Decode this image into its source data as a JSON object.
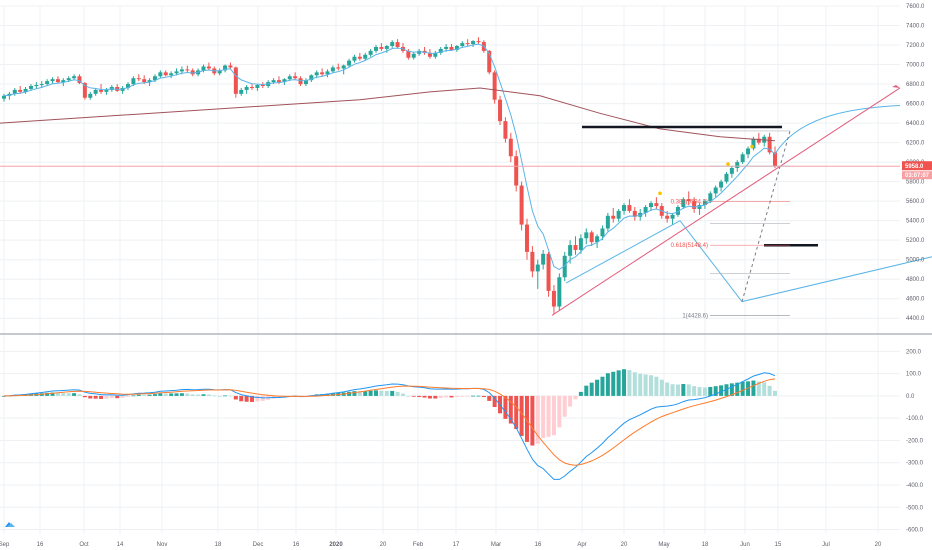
{
  "chart_data": [
    {
      "type": "candlestick",
      "title": "",
      "ylim": [
        4300,
        7600
      ],
      "y_ticks": [
        "7600.0",
        "7400.0",
        "7200.0",
        "7000.0",
        "6800.0",
        "6600.0",
        "6400.0",
        "6200.0",
        "6000.0",
        "5800.0",
        "5600.0",
        "5400.0",
        "5200.0",
        "5000.0",
        "4800.0",
        "4600.0",
        "4400.0"
      ],
      "y_tick_values": [
        7600,
        7400,
        7200,
        7000,
        6800,
        6600,
        6400,
        6200,
        6000,
        5800,
        5600,
        5400,
        5200,
        5000,
        4800,
        4600,
        4400
      ],
      "x_ticks": [
        "Sep",
        "16",
        "Oct",
        "14",
        "Nov",
        "18",
        "Dec",
        "16",
        "2020",
        "20",
        "Feb",
        "17",
        "Mar",
        "16",
        "Apr",
        "20",
        "May",
        "18",
        "Jun",
        "15",
        "Jul",
        "20"
      ],
      "last_price": "5958.0",
      "countdown": "03:07:07",
      "last_price_value": 5958,
      "candle_step_weeks": 0.0,
      "candles": [
        [
          6650,
          6700,
          6620,
          6680
        ],
        [
          6680,
          6720,
          6640,
          6700
        ],
        [
          6700,
          6760,
          6680,
          6740
        ],
        [
          6740,
          6780,
          6700,
          6720
        ],
        [
          6720,
          6770,
          6700,
          6750
        ],
        [
          6750,
          6800,
          6730,
          6780
        ],
        [
          6780,
          6820,
          6750,
          6790
        ],
        [
          6790,
          6830,
          6760,
          6800
        ],
        [
          6800,
          6850,
          6780,
          6830
        ],
        [
          6830,
          6870,
          6800,
          6850
        ],
        [
          6850,
          6880,
          6810,
          6820
        ],
        [
          6820,
          6860,
          6780,
          6840
        ],
        [
          6840,
          6880,
          6820,
          6860
        ],
        [
          6860,
          6900,
          6840,
          6880
        ],
        [
          6880,
          6900,
          6800,
          6810
        ],
        [
          6810,
          6820,
          6640,
          6660
        ],
        [
          6660,
          6720,
          6640,
          6700
        ],
        [
          6700,
          6760,
          6680,
          6740
        ],
        [
          6740,
          6800,
          6700,
          6720
        ],
        [
          6720,
          6760,
          6690,
          6740
        ],
        [
          6740,
          6790,
          6720,
          6770
        ],
        [
          6770,
          6800,
          6720,
          6730
        ],
        [
          6730,
          6780,
          6700,
          6760
        ],
        [
          6760,
          6820,
          6740,
          6800
        ],
        [
          6800,
          6880,
          6780,
          6860
        ],
        [
          6860,
          6900,
          6830,
          6850
        ],
        [
          6850,
          6890,
          6800,
          6820
        ],
        [
          6820,
          6860,
          6780,
          6840
        ],
        [
          6840,
          6900,
          6820,
          6880
        ],
        [
          6880,
          6940,
          6860,
          6920
        ],
        [
          6920,
          6940,
          6880,
          6890
        ],
        [
          6890,
          6930,
          6860,
          6910
        ],
        [
          6910,
          6960,
          6890,
          6930
        ],
        [
          6930,
          6980,
          6900,
          6950
        ],
        [
          6950,
          6990,
          6920,
          6940
        ],
        [
          6940,
          6960,
          6880,
          6900
        ],
        [
          6900,
          6960,
          6880,
          6940
        ],
        [
          6940,
          7000,
          6920,
          6980
        ],
        [
          6980,
          7020,
          6940,
          6960
        ],
        [
          6960,
          6980,
          6890,
          6910
        ],
        [
          6910,
          6960,
          6890,
          6940
        ],
        [
          6940,
          7000,
          6920,
          6990
        ],
        [
          6990,
          7020,
          6950,
          6970
        ],
        [
          6970,
          6980,
          6660,
          6700
        ],
        [
          6700,
          6760,
          6680,
          6740
        ],
        [
          6740,
          6790,
          6700,
          6770
        ],
        [
          6770,
          6800,
          6740,
          6760
        ],
        [
          6760,
          6800,
          6730,
          6790
        ],
        [
          6790,
          6820,
          6760,
          6780
        ],
        [
          6780,
          6840,
          6760,
          6820
        ],
        [
          6820,
          6860,
          6800,
          6840
        ],
        [
          6840,
          6880,
          6800,
          6820
        ],
        [
          6820,
          6860,
          6790,
          6850
        ],
        [
          6850,
          6900,
          6830,
          6880
        ],
        [
          6880,
          6920,
          6840,
          6860
        ],
        [
          6860,
          6880,
          6780,
          6800
        ],
        [
          6800,
          6860,
          6780,
          6840
        ],
        [
          6840,
          6900,
          6820,
          6890
        ],
        [
          6890,
          6940,
          6860,
          6920
        ],
        [
          6920,
          6960,
          6880,
          6900
        ],
        [
          6900,
          6950,
          6870,
          6930
        ],
        [
          6930,
          6990,
          6910,
          6970
        ],
        [
          6970,
          7010,
          6940,
          6960
        ],
        [
          6960,
          7000,
          6900,
          6990
        ],
        [
          6990,
          7060,
          6970,
          7040
        ],
        [
          7040,
          7100,
          7020,
          7080
        ],
        [
          7080,
          7120,
          7040,
          7060
        ],
        [
          7060,
          7120,
          7040,
          7100
        ],
        [
          7100,
          7160,
          7080,
          7140
        ],
        [
          7140,
          7200,
          7120,
          7180
        ],
        [
          7180,
          7220,
          7140,
          7160
        ],
        [
          7160,
          7200,
          7120,
          7190
        ],
        [
          7190,
          7250,
          7170,
          7230
        ],
        [
          7230,
          7260,
          7160,
          7180
        ],
        [
          7180,
          7220,
          7120,
          7140
        ],
        [
          7140,
          7160,
          7050,
          7070
        ],
        [
          7070,
          7130,
          7050,
          7110
        ],
        [
          7110,
          7160,
          7090,
          7140
        ],
        [
          7140,
          7180,
          7100,
          7120
        ],
        [
          7120,
          7160,
          7060,
          7080
        ],
        [
          7080,
          7140,
          7060,
          7120
        ],
        [
          7120,
          7180,
          7100,
          7160
        ],
        [
          7160,
          7210,
          7130,
          7180
        ],
        [
          7180,
          7210,
          7140,
          7150
        ],
        [
          7150,
          7200,
          7130,
          7190
        ],
        [
          7190,
          7240,
          7170,
          7220
        ],
        [
          7220,
          7260,
          7190,
          7210
        ],
        [
          7210,
          7250,
          7180,
          7240
        ],
        [
          7240,
          7280,
          7210,
          7230
        ],
        [
          7230,
          7250,
          7120,
          7140
        ],
        [
          7140,
          7150,
          6900,
          6920
        ],
        [
          6920,
          6940,
          6600,
          6640
        ],
        [
          6640,
          6680,
          6380,
          6420
        ],
        [
          6420,
          6460,
          6200,
          6240
        ],
        [
          6240,
          6300,
          6000,
          6060
        ],
        [
          6060,
          6120,
          5700,
          5760
        ],
        [
          5760,
          5800,
          5300,
          5360
        ],
        [
          5360,
          5420,
          5000,
          5080
        ],
        [
          5080,
          5140,
          4820,
          4880
        ],
        [
          4880,
          5000,
          4700,
          4950
        ],
        [
          4950,
          5100,
          4900,
          5060
        ],
        [
          5060,
          5080,
          4620,
          4680
        ],
        [
          4680,
          4740,
          4440,
          4520
        ],
        [
          4520,
          4860,
          4480,
          4820
        ],
        [
          4820,
          5080,
          4780,
          5040
        ],
        [
          5040,
          5200,
          4960,
          5150
        ],
        [
          5150,
          5240,
          5050,
          5100
        ],
        [
          5100,
          5260,
          5060,
          5220
        ],
        [
          5220,
          5320,
          5160,
          5280
        ],
        [
          5280,
          5300,
          5140,
          5180
        ],
        [
          5180,
          5260,
          5120,
          5240
        ],
        [
          5240,
          5350,
          5200,
          5320
        ],
        [
          5320,
          5480,
          5290,
          5450
        ],
        [
          5450,
          5530,
          5380,
          5420
        ],
        [
          5420,
          5520,
          5390,
          5500
        ],
        [
          5500,
          5580,
          5460,
          5560
        ],
        [
          5560,
          5620,
          5480,
          5500
        ],
        [
          5500,
          5540,
          5400,
          5440
        ],
        [
          5440,
          5520,
          5400,
          5480
        ],
        [
          5480,
          5560,
          5440,
          5540
        ],
        [
          5540,
          5600,
          5500,
          5580
        ],
        [
          5580,
          5640,
          5520,
          5550
        ],
        [
          5550,
          5580,
          5420,
          5450
        ],
        [
          5450,
          5500,
          5380,
          5420
        ],
        [
          5420,
          5480,
          5360,
          5460
        ],
        [
          5460,
          5560,
          5440,
          5540
        ],
        [
          5540,
          5640,
          5520,
          5620
        ],
        [
          5620,
          5700,
          5560,
          5600
        ],
        [
          5600,
          5640,
          5480,
          5520
        ],
        [
          5520,
          5580,
          5460,
          5560
        ],
        [
          5560,
          5620,
          5520,
          5600
        ],
        [
          5600,
          5700,
          5580,
          5680
        ],
        [
          5680,
          5760,
          5640,
          5740
        ],
        [
          5740,
          5820,
          5700,
          5800
        ],
        [
          5800,
          5900,
          5780,
          5880
        ],
        [
          5880,
          5960,
          5840,
          5940
        ],
        [
          5940,
          6020,
          5900,
          6000
        ],
        [
          6000,
          6100,
          5980,
          6080
        ],
        [
          6080,
          6160,
          6040,
          6140
        ],
        [
          6140,
          6260,
          6120,
          6240
        ],
        [
          6240,
          6300,
          6180,
          6200
        ],
        [
          6200,
          6280,
          6160,
          6260
        ],
        [
          6260,
          6300,
          6080,
          6100
        ],
        [
          6100,
          6160,
          5940,
          5960
        ]
      ],
      "fib_levels": [
        {
          "ratio": "0.382",
          "price": 5594.9,
          "label": "0.382(5594.9)",
          "color": "#ef5350"
        },
        {
          "ratio": "0.618",
          "price": 5148.4,
          "label": "0.618(5148.4)",
          "color": "#ef5350"
        },
        {
          "ratio": "1",
          "price": 4428.6,
          "label": "1(4428.6)",
          "color": "#787b86"
        }
      ]
    },
    {
      "type": "macd",
      "ylim": [
        -620,
        260
      ],
      "y_ticks": [
        "200.0",
        "100.0",
        "0.0",
        "-100.0",
        "-200.0",
        "-300.0",
        "-400.0",
        "-500.0",
        "-600.0"
      ],
      "y_tick_values": [
        200,
        100,
        0,
        -100,
        -200,
        -300,
        -400,
        -500,
        -600
      ]
    }
  ],
  "colors": {
    "up": "#26a69a",
    "down": "#ef5350",
    "ma_fast": "#5ab4e8",
    "ma_slow": "#a0525a",
    "trendline": "#e25b7b",
    "macd": "#2196f3",
    "signal": "#ff7b2c"
  }
}
